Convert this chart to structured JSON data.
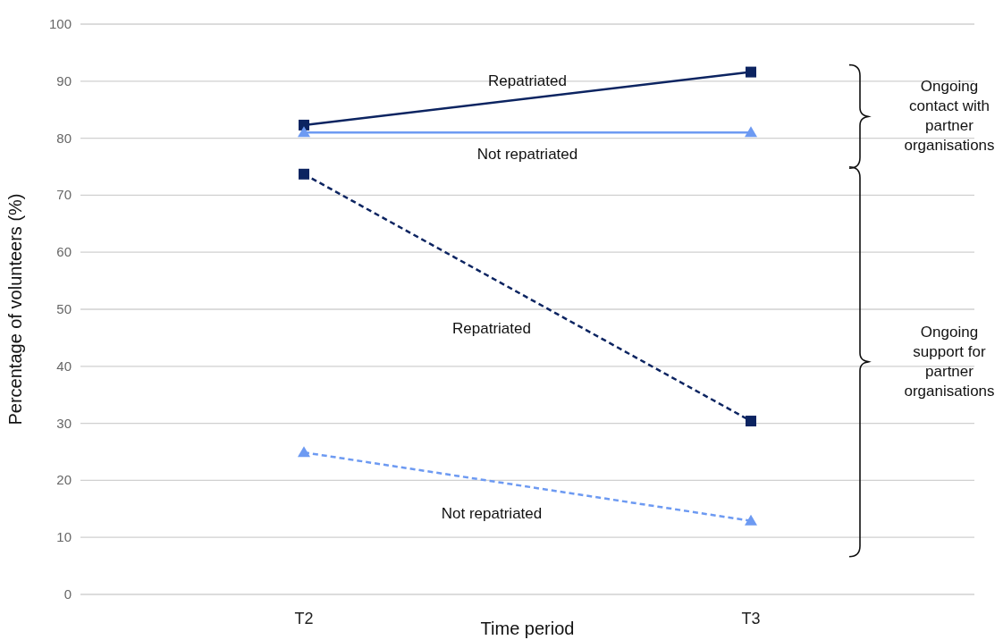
{
  "chart_data": {
    "type": "line",
    "xlabel": "Time period",
    "ylabel": "Percentage of volunteers (%)",
    "categories": [
      "T2",
      "T3"
    ],
    "ylim": [
      0,
      100
    ],
    "yticks": [
      0,
      10,
      20,
      30,
      40,
      50,
      60,
      70,
      80,
      90,
      100
    ],
    "grid": "y",
    "series": [
      {
        "name": "Repatriated",
        "color": "#0c2461",
        "values": [
          82.3,
          91.6
        ],
        "marker": "square",
        "line_style": "solid"
      },
      {
        "name": "Not repatriated",
        "color": "#6d9af2",
        "values": [
          81.0,
          81.0
        ],
        "marker": "triangle",
        "line_style": "solid"
      },
      {
        "name": "Repatriated",
        "color": "#0c2461",
        "values": [
          73.7,
          30.4
        ],
        "marker": "square",
        "line_style": "dashed"
      },
      {
        "name": "Not repatriated",
        "color": "#6d9af2",
        "values": [
          24.9,
          12.9
        ],
        "marker": "triangle",
        "line_style": "dashed"
      }
    ],
    "annotations": [
      "Ongoing contact with partner organisations",
      "Ongoing support for partner organisations"
    ]
  }
}
